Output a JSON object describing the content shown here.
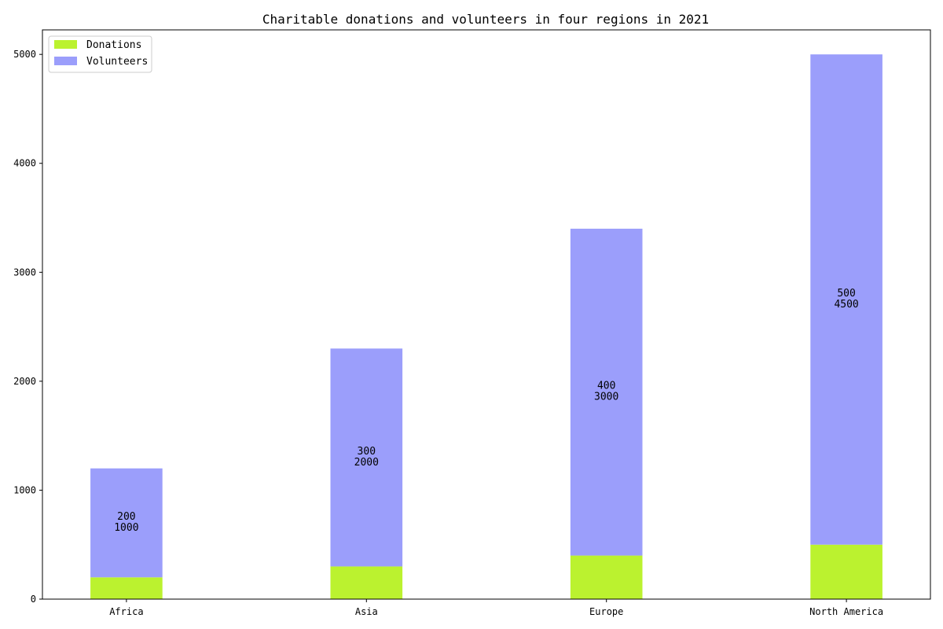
{
  "chart_data": {
    "type": "bar",
    "stacked": true,
    "title": "Charitable donations and volunteers in four regions in 2021",
    "xlabel": "",
    "ylabel": "",
    "categories": [
      "Africa",
      "Asia",
      "Europe",
      "North America"
    ],
    "series": [
      {
        "name": "Donations",
        "values": [
          200,
          300,
          400,
          500
        ],
        "color": "#bbf22f"
      },
      {
        "name": "Volunteers",
        "values": [
          1000,
          2000,
          3000,
          4500
        ],
        "color": "#9b9efb"
      }
    ],
    "ylim": [
      0,
      5225
    ],
    "yticks": [
      0,
      1000,
      2000,
      3000,
      4000,
      5000
    ],
    "legend": {
      "position": "upper-left"
    },
    "grid": false,
    "data_labels": "two-line label inside bar: donations over volunteers"
  }
}
